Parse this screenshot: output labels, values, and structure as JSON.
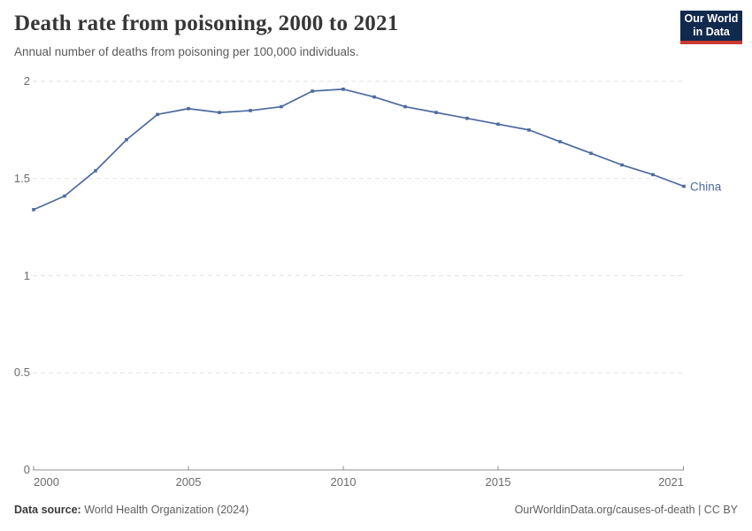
{
  "header": {
    "title": "Death rate from poisoning, 2000 to 2021",
    "subtitle": "Annual number of deaths from poisoning per 100,000 individuals.",
    "logo": {
      "line1": "Our World",
      "line2": "in Data",
      "bg_color": "#12294e",
      "accent_color": "#cb3a31"
    }
  },
  "chart_data": {
    "type": "line",
    "title": "Death rate from poisoning, 2000 to 2021",
    "x": [
      2000,
      2001,
      2002,
      2003,
      2004,
      2005,
      2006,
      2007,
      2008,
      2009,
      2010,
      2011,
      2012,
      2013,
      2014,
      2015,
      2016,
      2017,
      2018,
      2019,
      2020,
      2021
    ],
    "series": [
      {
        "name": "China",
        "color": "#4c6a9e",
        "values": [
          1.34,
          1.41,
          1.54,
          1.7,
          1.83,
          1.86,
          1.84,
          1.85,
          1.87,
          1.95,
          1.96,
          1.92,
          1.87,
          1.84,
          1.81,
          1.78,
          1.75,
          1.69,
          1.63,
          1.57,
          1.52,
          1.46
        ]
      }
    ],
    "xlabel": "",
    "ylabel": "",
    "ylim": [
      0,
      2
    ],
    "xlim": [
      2000,
      2021
    ],
    "yticks": [
      0,
      0.5,
      1,
      1.5,
      2
    ],
    "ytick_labels": [
      "0",
      "0.5",
      "1",
      "1.5",
      "2"
    ],
    "xticks": [
      2000,
      2005,
      2010,
      2015,
      2021
    ],
    "xtick_labels": [
      "2000",
      "2005",
      "2010",
      "2015",
      "2021"
    ],
    "grid": "horizontal-dashed",
    "legend_position": "end-of-line-label"
  },
  "footer": {
    "datasource_label": "Data source:",
    "datasource_value": "World Health Organization (2024)",
    "credit": "OurWorldinData.org/causes-of-death | CC BY"
  }
}
